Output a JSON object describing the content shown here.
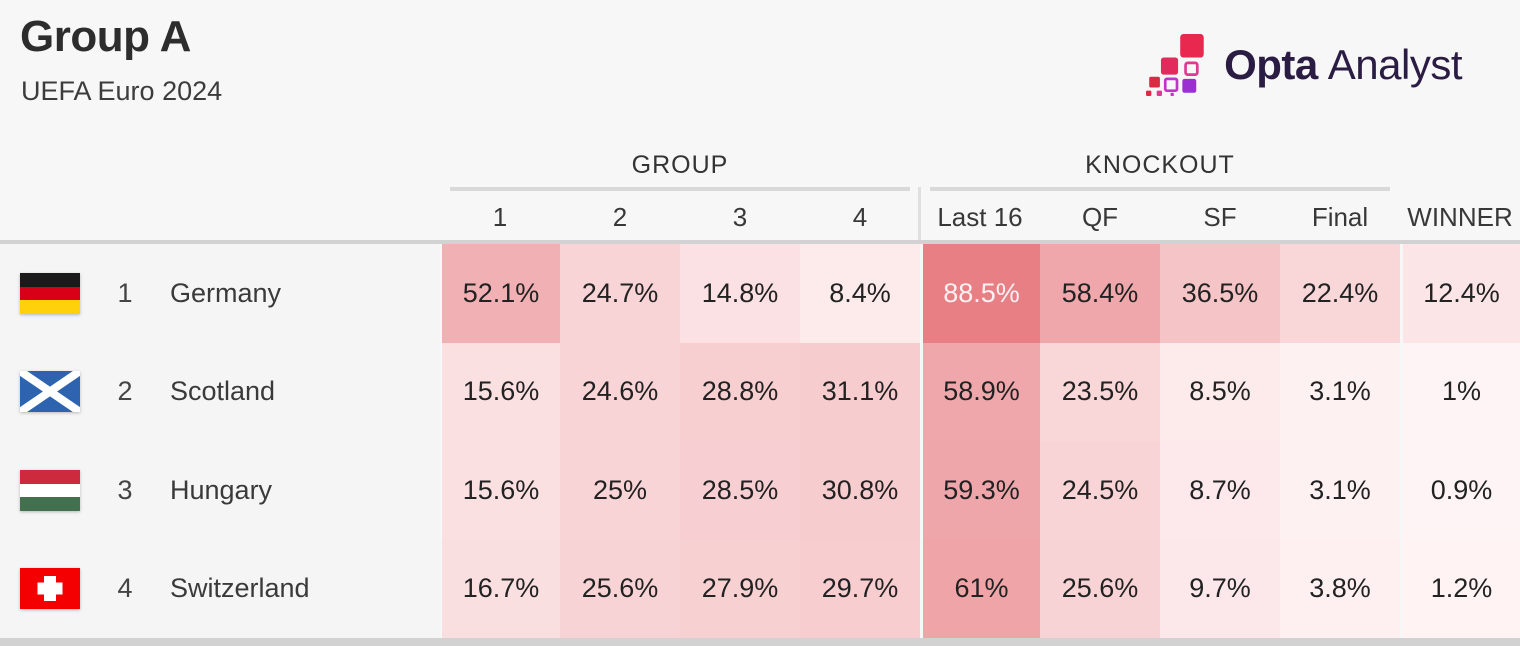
{
  "page": {
    "title": "Group A",
    "subtitle": "UEFA Euro 2024",
    "background": "#f7f7f7"
  },
  "logo": {
    "brand_bold": "Opta",
    "brand_light": "Analyst",
    "text_color": "#2b1c44",
    "icon_colors": [
      "#e8284e",
      "#e22a5c",
      "#da2a44",
      "#dd3a92",
      "#c133c9",
      "#9b2fd1"
    ]
  },
  "chart_data": {
    "type": "heatmap",
    "title": "Group A",
    "subtitle": "UEFA Euro 2024",
    "column_groups": [
      {
        "label": "GROUP",
        "columns": [
          "1",
          "2",
          "3",
          "4"
        ]
      },
      {
        "label": "KNOCKOUT",
        "columns": [
          "Last 16",
          "QF",
          "SF",
          "Final"
        ]
      }
    ],
    "columns": [
      "1",
      "2",
      "3",
      "4",
      "Last 16",
      "QF",
      "SF",
      "Final",
      "WINNER"
    ],
    "rows": [
      {
        "rank": "1",
        "team": "Germany",
        "flag": "germany",
        "labels": [
          "52.1%",
          "24.7%",
          "14.8%",
          "8.4%",
          "88.5%",
          "58.4%",
          "36.5%",
          "22.4%",
          "12.4%"
        ],
        "values": [
          52.1,
          24.7,
          14.8,
          8.4,
          88.5,
          58.4,
          36.5,
          22.4,
          12.4
        ]
      },
      {
        "rank": "2",
        "team": "Scotland",
        "flag": "scotland",
        "labels": [
          "15.6%",
          "24.6%",
          "28.8%",
          "31.1%",
          "58.9%",
          "23.5%",
          "8.5%",
          "3.1%",
          "1%"
        ],
        "values": [
          15.6,
          24.6,
          28.8,
          31.1,
          58.9,
          23.5,
          8.5,
          3.1,
          1
        ]
      },
      {
        "rank": "3",
        "team": "Hungary",
        "flag": "hungary",
        "labels": [
          "15.6%",
          "25%",
          "28.5%",
          "30.8%",
          "59.3%",
          "24.5%",
          "8.7%",
          "3.1%",
          "0.9%"
        ],
        "values": [
          15.6,
          25,
          28.5,
          30.8,
          59.3,
          24.5,
          8.7,
          3.1,
          0.9
        ]
      },
      {
        "rank": "4",
        "team": "Switzerland",
        "flag": "switzerland",
        "labels": [
          "16.7%",
          "25.6%",
          "27.9%",
          "29.7%",
          "61%",
          "25.6%",
          "9.7%",
          "3.8%",
          "1.2%"
        ],
        "values": [
          16.7,
          25.6,
          27.9,
          29.7,
          61,
          25.6,
          9.7,
          3.8,
          1.2
        ]
      }
    ],
    "color_scale": {
      "min": 0,
      "max": 100,
      "min_color": "#fff5f6",
      "max_color": "#e47076",
      "light_text_threshold": 75,
      "light_text_color": "#fcf1f2",
      "dark_text_color": "#222222"
    }
  },
  "flags": {
    "germany": {
      "type": "hstripes",
      "colors": [
        "#1a1a1a",
        "#d80016",
        "#ffd10a"
      ]
    },
    "scotland": {
      "type": "saltire",
      "field": "#2e63b0",
      "cross": "#ffffff"
    },
    "hungary": {
      "type": "hstripes",
      "colors": [
        "#cd2a3e",
        "#ffffff",
        "#43704e"
      ]
    },
    "switzerland": {
      "type": "cross",
      "field": "#f50002",
      "cross": "#ffffff"
    }
  }
}
